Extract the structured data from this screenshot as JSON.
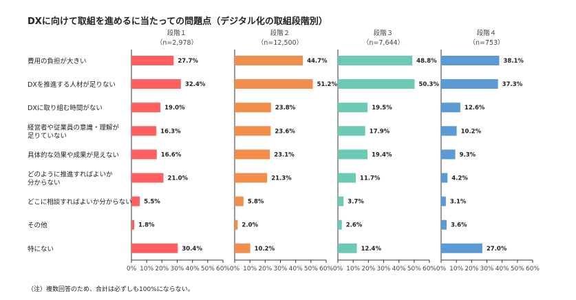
{
  "chart_data": {
    "type": "bar",
    "orientation": "horizontal",
    "title": "DXに向けて取組を進めるに当たっての問題点（デジタル化の取組段階別）",
    "categories": [
      "費用の負担が大きい",
      "DXを推進する人材が足りない",
      "DXに取り組む時間がない",
      "経営者や従業員の意識・理解が\n足りていない",
      "具体的な効果や成果が見えない",
      "どのように推進すればよいか\n分からない",
      "どこに相談すればよいか分からない",
      "その他",
      "特にない"
    ],
    "xlim": [
      0,
      60
    ],
    "ticks": [
      "0%",
      "10%",
      "20%",
      "30%",
      "40%",
      "50%",
      "60%"
    ],
    "series": [
      {
        "name": "段階１",
        "n": "（n=2,978）",
        "color": "#FF5F5F",
        "values": [
          27.7,
          32.4,
          19.0,
          16.3,
          16.6,
          21.0,
          5.5,
          1.8,
          30.4
        ]
      },
      {
        "name": "段階２",
        "n": "（n=12,500）",
        "color": "#F28E4B",
        "values": [
          44.7,
          51.2,
          23.8,
          23.6,
          23.1,
          21.3,
          5.8,
          2.0,
          10.2
        ]
      },
      {
        "name": "段階３",
        "n": "（n=7,644）",
        "color": "#6CC9B4",
        "values": [
          48.8,
          50.3,
          19.5,
          17.9,
          19.4,
          11.7,
          3.7,
          2.6,
          12.4
        ]
      },
      {
        "name": "段階４",
        "n": "（n=753）",
        "color": "#5B9BD5",
        "values": [
          38.1,
          37.3,
          12.6,
          10.2,
          9.3,
          4.2,
          3.1,
          3.6,
          27.0
        ]
      }
    ],
    "note": "（注）複数回答のため、合計は必ずしも100%にならない。"
  }
}
